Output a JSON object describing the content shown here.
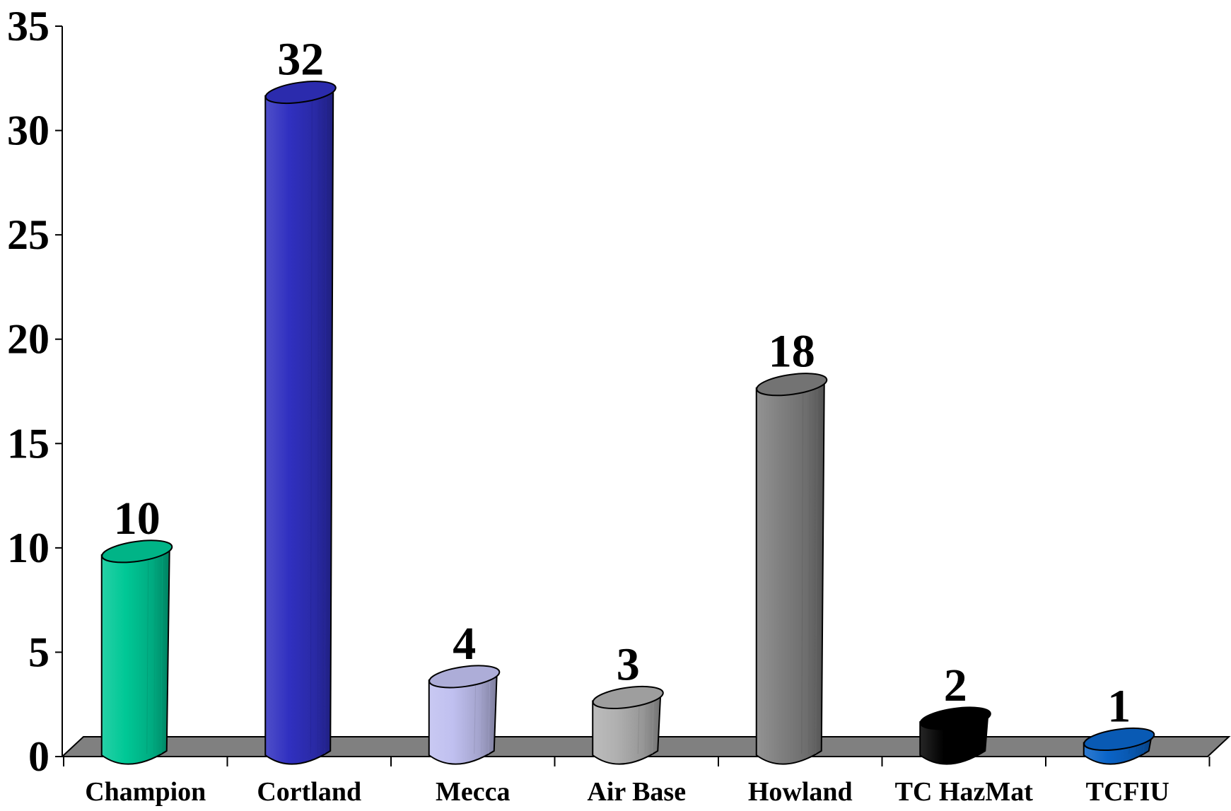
{
  "chart_data": {
    "type": "bar",
    "title": "",
    "xlabel": "",
    "ylabel": "",
    "ylim": [
      0,
      35
    ],
    "yticks": [
      0,
      5,
      10,
      15,
      20,
      25,
      30,
      35
    ],
    "categories": [
      "Champion",
      "Cortland",
      "Mecca",
      "Air Base",
      "Howland",
      "TC HazMat",
      "TCFIU"
    ],
    "values": [
      10,
      32,
      4,
      3,
      18,
      2,
      1
    ],
    "bar_colors": [
      "#00c896",
      "#3030c0",
      "#c0c0f0",
      "#b0b0b0",
      "#808080",
      "#000000",
      "#0a64c8"
    ],
    "floor_color": "#808080",
    "grid": false,
    "legend": "none",
    "bar_shape": "cylinder"
  }
}
